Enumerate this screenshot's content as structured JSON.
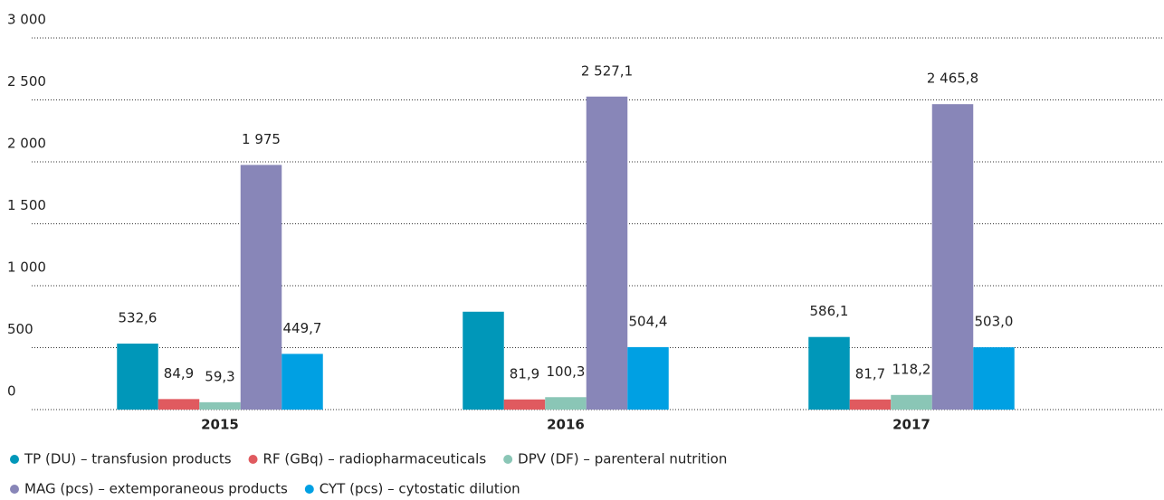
{
  "chart_data": {
    "type": "bar",
    "categories": [
      "2015",
      "2016",
      "2017"
    ],
    "series": [
      {
        "name": "TP (DU) – transfusion products",
        "color": "#0097b9",
        "values": [
          532.6,
          790,
          586.1
        ],
        "value_labels": [
          "532,6",
          null,
          "586,1"
        ]
      },
      {
        "name": "RF (GBq) – radiopharmaceuticals",
        "color": "#e05a5f",
        "values": [
          84.9,
          81.9,
          81.7
        ],
        "value_labels": [
          "84,9",
          "81,9",
          "81,7"
        ]
      },
      {
        "name": "DPV (DF) – parenteral nutrition",
        "color": "#8ac6b6",
        "values": [
          59.3,
          100.3,
          118.2
        ],
        "value_labels": [
          "59,3",
          "100,3",
          "118,2"
        ]
      },
      {
        "name": "MAG (pcs) – extemporaneous products",
        "color": "#8886b8",
        "values": [
          1975,
          2527.1,
          2465.8
        ],
        "value_labels": [
          "1 975",
          "2 527,1",
          "2 465,8"
        ]
      },
      {
        "name": "CYT (pcs) – cytostatic dilution",
        "color": "#00a0e3",
        "values": [
          449.7,
          504.4,
          503.0
        ],
        "value_labels": [
          "449,7",
          "504,4",
          "503,0"
        ]
      }
    ],
    "ylim": [
      0,
      3000
    ],
    "yticks": [
      0,
      500,
      {
        "value": 1000,
        "label": "1 000"
      },
      {
        "value": 1500,
        "label": "1 500"
      },
      {
        "value": 2000,
        "label": "2 000"
      },
      {
        "value": 2500,
        "label": "2 500"
      },
      {
        "value": 3000,
        "label": "3 000"
      }
    ],
    "grid": true
  }
}
